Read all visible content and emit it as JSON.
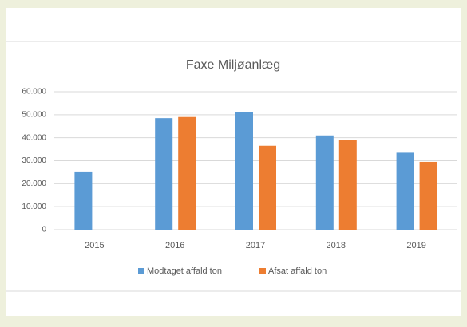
{
  "chart_data": {
    "type": "bar",
    "title": "Faxe Miljøanlæg",
    "categories": [
      "2015",
      "2016",
      "2017",
      "2018",
      "2019"
    ],
    "series": [
      {
        "name": "Modtaget affald ton",
        "color": "#5b9bd5",
        "values": [
          25000,
          48500,
          51000,
          41000,
          33500
        ]
      },
      {
        "name": "Afsat affald ton",
        "color": "#ed7d31",
        "values": [
          null,
          49000,
          36500,
          39000,
          29500
        ]
      }
    ],
    "ylim": [
      0,
      60000
    ],
    "yticks": [
      0,
      {
        "value": 10000,
        "label": "10.000"
      },
      {
        "value": 20000,
        "label": "20.000"
      },
      {
        "value": 30000,
        "label": "30.000"
      },
      {
        "value": 40000,
        "label": "40.000"
      },
      {
        "value": 50000,
        "label": "50.000"
      },
      {
        "value": 60000,
        "label": "60.000"
      }
    ],
    "grid": true,
    "legend": "bottom"
  }
}
